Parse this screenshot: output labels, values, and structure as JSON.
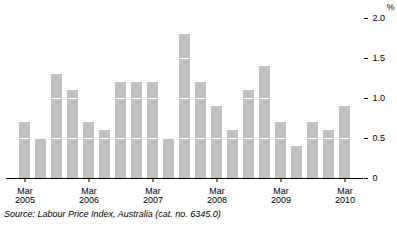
{
  "chart_data": {
    "type": "bar",
    "caption": "Source: Labour Price Index, Australia (cat. no. 6345.0)",
    "y_label": "%",
    "categories": [
      "Mar\n2005",
      null,
      null,
      null,
      "Mar\n2006",
      null,
      null,
      null,
      "Mar\n2007",
      null,
      null,
      null,
      "Mar\n2008",
      null,
      null,
      null,
      "Mar\n2009",
      null,
      null,
      null,
      "Mar\n2010"
    ],
    "values": [
      0.7,
      0.5,
      1.3,
      1.1,
      0.7,
      0.6,
      1.2,
      1.2,
      1.2,
      0.5,
      1.8,
      1.2,
      0.9,
      0.6,
      1.1,
      1.4,
      0.7,
      0.4,
      0.7,
      0.6,
      0.9
    ],
    "color": "#c0c0c0",
    "ylim": [
      0,
      2
    ],
    "yticks": [
      0,
      0.5,
      {
        "value": 1,
        "label": "1.0"
      },
      1.5,
      {
        "value": 2,
        "label": "2.0"
      }
    ],
    "grid": true
  }
}
